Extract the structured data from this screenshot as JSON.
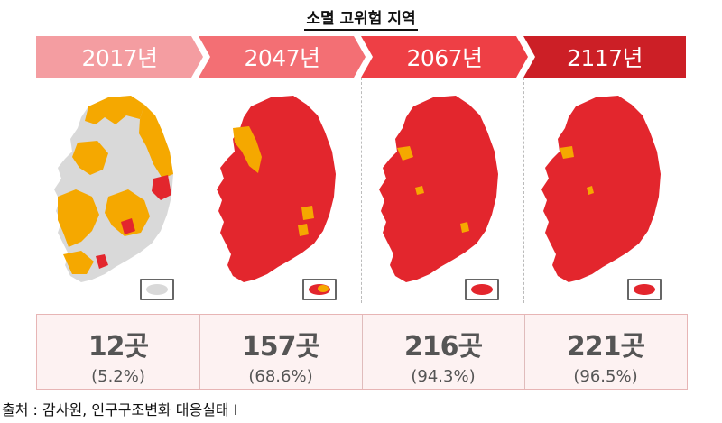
{
  "title": "소멸 고위험 지역",
  "panels": [
    {
      "year": "2017년",
      "count": "12곳",
      "pct": "(5.2%)",
      "banner_color": "#f49da1",
      "map_state": "mostly-safe"
    },
    {
      "year": "2047년",
      "count": "157곳",
      "pct": "(68.6%)",
      "banner_color": "#f36f74",
      "map_state": "mostly-high-risk"
    },
    {
      "year": "2067년",
      "count": "216곳",
      "pct": "(94.3%)",
      "banner_color": "#ee3f45",
      "map_state": "nearly-all-high-risk"
    },
    {
      "year": "2117년",
      "count": "221곳",
      "pct": "(96.5%)",
      "banner_color": "#cc1f26",
      "map_state": "nearly-all-high-risk"
    }
  ],
  "legend_colors": {
    "high_risk": "#e3262d",
    "risk": "#f5a800",
    "safe": "#d9d9d9"
  },
  "source": "출처 : 감사원, 인구구조변화 대응실태 Ⅰ"
}
